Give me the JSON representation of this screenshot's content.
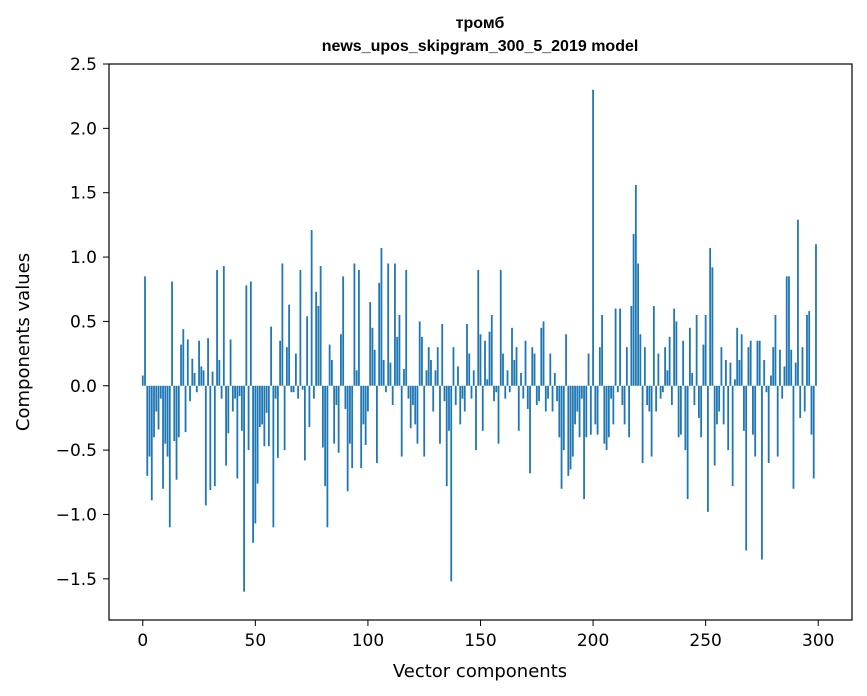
{
  "chart_data": {
    "type": "bar",
    "title": "тромб",
    "subtitle": "news_upos_skipgram_300_5_2019 model",
    "xlabel": "Vector components",
    "ylabel": "Components values",
    "xlim": [
      -15,
      315
    ],
    "ylim": [
      -1.82,
      2.5
    ],
    "xticks": [
      0,
      50,
      100,
      150,
      200,
      250,
      300
    ],
    "yticks": [
      -1.5,
      -1.0,
      -0.5,
      0.0,
      0.5,
      1.0,
      1.5,
      2.0,
      2.5
    ],
    "ytick_labels": [
      "−1.5",
      "−1.0",
      "−0.5",
      "0.0",
      "0.5",
      "1.0",
      "1.5",
      "2.0",
      "2.5"
    ],
    "bar_color": "#1f77b4",
    "grid": false,
    "values": [
      0.08,
      0.85,
      -0.7,
      -0.55,
      -0.89,
      -0.4,
      -0.2,
      -0.34,
      -0.1,
      -0.8,
      -0.45,
      -0.55,
      -1.1,
      0.81,
      -0.43,
      -0.73,
      -0.4,
      0.32,
      0.44,
      -0.36,
      0.36,
      -0.12,
      0.21,
      0.1,
      -0.05,
      0.35,
      0.15,
      0.12,
      -0.93,
      0.37,
      -0.81,
      0.11,
      -0.78,
      0.9,
      0.2,
      -0.1,
      0.93,
      -0.62,
      -0.37,
      0.36,
      -0.2,
      -0.1,
      -0.72,
      -0.08,
      -0.35,
      -1.6,
      0.78,
      -0.5,
      0.81,
      -1.22,
      -1.07,
      -0.76,
      -0.32,
      -0.3,
      -0.47,
      -0.21,
      -0.47,
      0.46,
      -1.1,
      -0.1,
      -0.56,
      0.35,
      0.95,
      -0.5,
      0.3,
      0.63,
      -0.05,
      -0.05,
      0.25,
      -0.1,
      0.9,
      -0.03,
      -0.58,
      0.54,
      -0.32,
      1.21,
      -0.1,
      0.73,
      0.62,
      0.93,
      -0.48,
      -0.78,
      -1.1,
      0.32,
      0.2,
      -0.45,
      -0.15,
      -0.52,
      0.4,
      0.85,
      -0.18,
      -0.82,
      -0.45,
      -0.64,
      0.95,
      0.12,
      0.9,
      -0.64,
      -0.3,
      -0.46,
      -0.2,
      0.65,
      0.45,
      0.28,
      -0.6,
      0.8,
      1.07,
      0.2,
      -0.05,
      0.95,
      0.18,
      -0.15,
      0.95,
      0.38,
      0.55,
      -0.55,
      0.13,
      0.9,
      -0.1,
      -0.33,
      -0.15,
      -0.3,
      -0.45,
      0.5,
      0.38,
      -0.55,
      0.12,
      0.3,
      0.2,
      -0.2,
      0.12,
      0.3,
      -0.45,
      0.48,
      -0.12,
      -0.78,
      -0.35,
      -1.52,
      0.3,
      -0.15,
      0.15,
      -0.3,
      -0.1,
      -0.2,
      0.48,
      0.25,
      -0.1,
      0.12,
      -0.5,
      0.9,
      0.4,
      -0.35,
      0.35,
      0.05,
      0.42,
      0.55,
      -0.12,
      -0.05,
      -0.45,
      0.9,
      0.25,
      -0.1,
      0.12,
      -0.05,
      0.45,
      0.2,
      0.3,
      -0.35,
      0.1,
      -0.1,
      0.35,
      -0.18,
      -0.68,
      0.3,
      0.25,
      -0.15,
      -0.12,
      0.45,
      0.5,
      -0.2,
      -0.1,
      0.25,
      -0.2,
      0.1,
      -0.12,
      -0.4,
      -0.8,
      -0.5,
      0.4,
      -0.7,
      -0.65,
      -0.55,
      -0.3,
      -0.2,
      -0.4,
      -0.1,
      -0.88,
      -0.4,
      0.25,
      -0.38,
      2.3,
      -0.3,
      -0.38,
      0.3,
      0.55,
      -0.45,
      -0.5,
      -0.4,
      -0.1,
      -0.3,
      0.6,
      -0.05,
      0.6,
      -0.15,
      -0.3,
      0.3,
      -0.4,
      0.62,
      1.18,
      1.56,
      0.95,
      0.4,
      -0.6,
      0.3,
      -0.15,
      -0.2,
      -0.55,
      0.62,
      -0.2,
      0.25,
      -0.1,
      -0.05,
      0.3,
      0.12,
      0.38,
      -0.15,
      0.6,
      0.5,
      -0.4,
      -0.38,
      0.35,
      -0.5,
      -0.88,
      0.45,
      0.1,
      -0.15,
      0.55,
      -0.25,
      -0.4,
      0.32,
      0.55,
      -0.98,
      1.07,
      0.92,
      -0.62,
      -0.3,
      -0.2,
      0.3,
      -0.3,
      0.2,
      -0.5,
      0.18,
      -0.78,
      0.05,
      0.45,
      0.2,
      0.4,
      -0.35,
      -1.28,
      0.3,
      0.35,
      -0.38,
      -0.55,
      0.35,
      0.35,
      -1.35,
      0.2,
      -0.05,
      -0.6,
      0.08,
      0.3,
      0.55,
      -0.55,
      0.28,
      -0.1,
      0.15,
      0.85,
      0.85,
      0.28,
      -0.8,
      0.18,
      1.29,
      -0.25,
      0.3,
      -0.2,
      0.55,
      0.58,
      -0.38,
      -0.72,
      1.1
    ]
  }
}
